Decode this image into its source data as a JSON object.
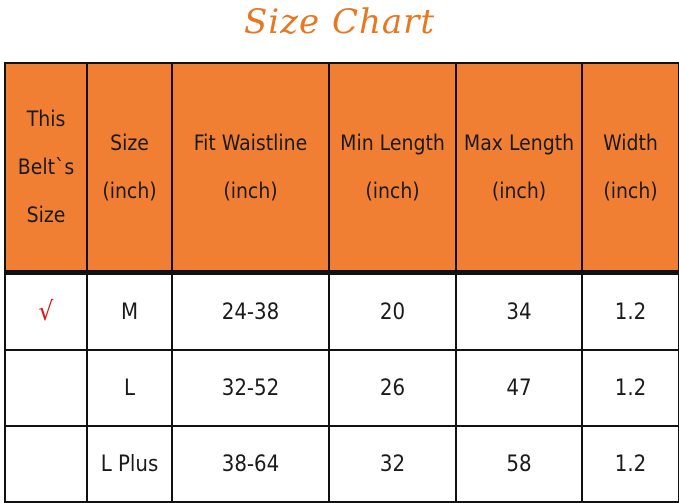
{
  "title": "Size Chart",
  "colors": {
    "header_bg": "#f07f34",
    "title": "#e87722",
    "check": "#dd1111"
  },
  "columns": [
    [
      "This",
      "Belt`s",
      "Size"
    ],
    [
      "Size",
      "(inch)"
    ],
    [
      "Fit Waistline",
      "(inch)"
    ],
    [
      "Min Length",
      "(inch)"
    ],
    [
      "Max Length",
      "(inch)"
    ],
    [
      "Width",
      "(inch)"
    ]
  ],
  "rows": [
    [
      "√",
      "M",
      "24-38",
      "20",
      "34",
      "1.2"
    ],
    [
      "",
      "L",
      "32-52",
      "26",
      "47",
      "1.2"
    ],
    [
      "",
      "L Plus",
      "38-64",
      "32",
      "58",
      "1.2"
    ]
  ]
}
